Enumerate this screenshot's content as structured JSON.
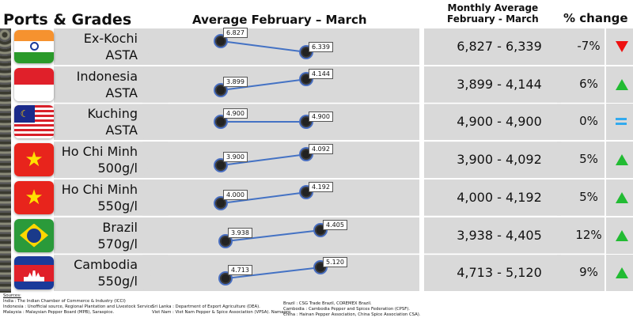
{
  "headers": {
    "ports": "Ports & Grades",
    "average": "Average February – March",
    "monthly": "Monthly Average\nFebruary - March",
    "monthly_l1": "Monthly Average",
    "monthly_l2": "February - March",
    "change": "% change"
  },
  "colors": {
    "line": "#4472c4",
    "up": "#22bb33",
    "down": "#ee1111",
    "equal": "#33aaee",
    "row_bg": "#d9d9d9"
  },
  "chart_data": {
    "type": "line",
    "title": "Average February – March",
    "categories": [
      "February",
      "March"
    ],
    "series": [
      {
        "port": "Ex-Kochi",
        "grade": "ASTA",
        "flag": "india",
        "values": [
          6827,
          6339
        ],
        "labels": [
          "6.827",
          "6.339"
        ],
        "range": "6,827 - 6,339",
        "change": "-7%",
        "trend": "down"
      },
      {
        "port": "Indonesia",
        "grade": "ASTA",
        "flag": "indonesia",
        "values": [
          3899,
          4144
        ],
        "labels": [
          "3.899",
          "4.144"
        ],
        "range": "3,899 - 4,144",
        "change": "6%",
        "trend": "up"
      },
      {
        "port": "Kuching",
        "grade": "ASTA",
        "flag": "malaysia",
        "values": [
          4900,
          4900
        ],
        "labels": [
          "4.900",
          "4.900"
        ],
        "range": "4,900 - 4,900",
        "change": "0%",
        "trend": "equal"
      },
      {
        "port": "Ho Chi Minh",
        "grade": "500g/l",
        "flag": "vietnam",
        "values": [
          3900,
          4092
        ],
        "labels": [
          "3.900",
          "4.092"
        ],
        "range": "3,900 - 4,092",
        "change": "5%",
        "trend": "up"
      },
      {
        "port": "Ho Chi Minh",
        "grade": "550g/l",
        "flag": "vietnam",
        "values": [
          4000,
          4192
        ],
        "labels": [
          "4.000",
          "4.192"
        ],
        "range": "4,000 - 4,192",
        "change": "5%",
        "trend": "up"
      },
      {
        "port": "Brazil",
        "grade": "570g/l",
        "flag": "brazil",
        "values": [
          3938,
          4405
        ],
        "labels": [
          "3.938",
          "4.405"
        ],
        "range": "3,938 - 4,405",
        "change": "12%",
        "trend": "up"
      },
      {
        "port": "Cambodia",
        "grade": "550g/l",
        "flag": "cambodia",
        "values": [
          4713,
          5120
        ],
        "labels": [
          "4.713",
          "5.120"
        ],
        "range": "4,713 - 5,120",
        "change": "9%",
        "trend": "up"
      }
    ]
  },
  "sources": {
    "title": "Sources:",
    "col1": [
      "India : The Indian Chamber of Commerce & Industry (ICCI)",
      "Indonesia : Unofficial source, Regional Plantation and Livestock Service.",
      "Malaysia : Malaysian Pepper Board (MPB), Saraspice."
    ],
    "col2": [
      "Sri Lanka : Department of Export Agriculture (DEA).",
      "Viet Nam : Viet Nam Pepper & Spice Association (VPSA). Namagro."
    ],
    "col3": [
      "Brazil : CSG Trade Brazil, COREMEX Brazil.",
      "Cambodia : Cambodia Pepper and Spices Federation (CPSF).",
      "China : Hainan Pepper Association, China Spice Association CSA)."
    ]
  }
}
